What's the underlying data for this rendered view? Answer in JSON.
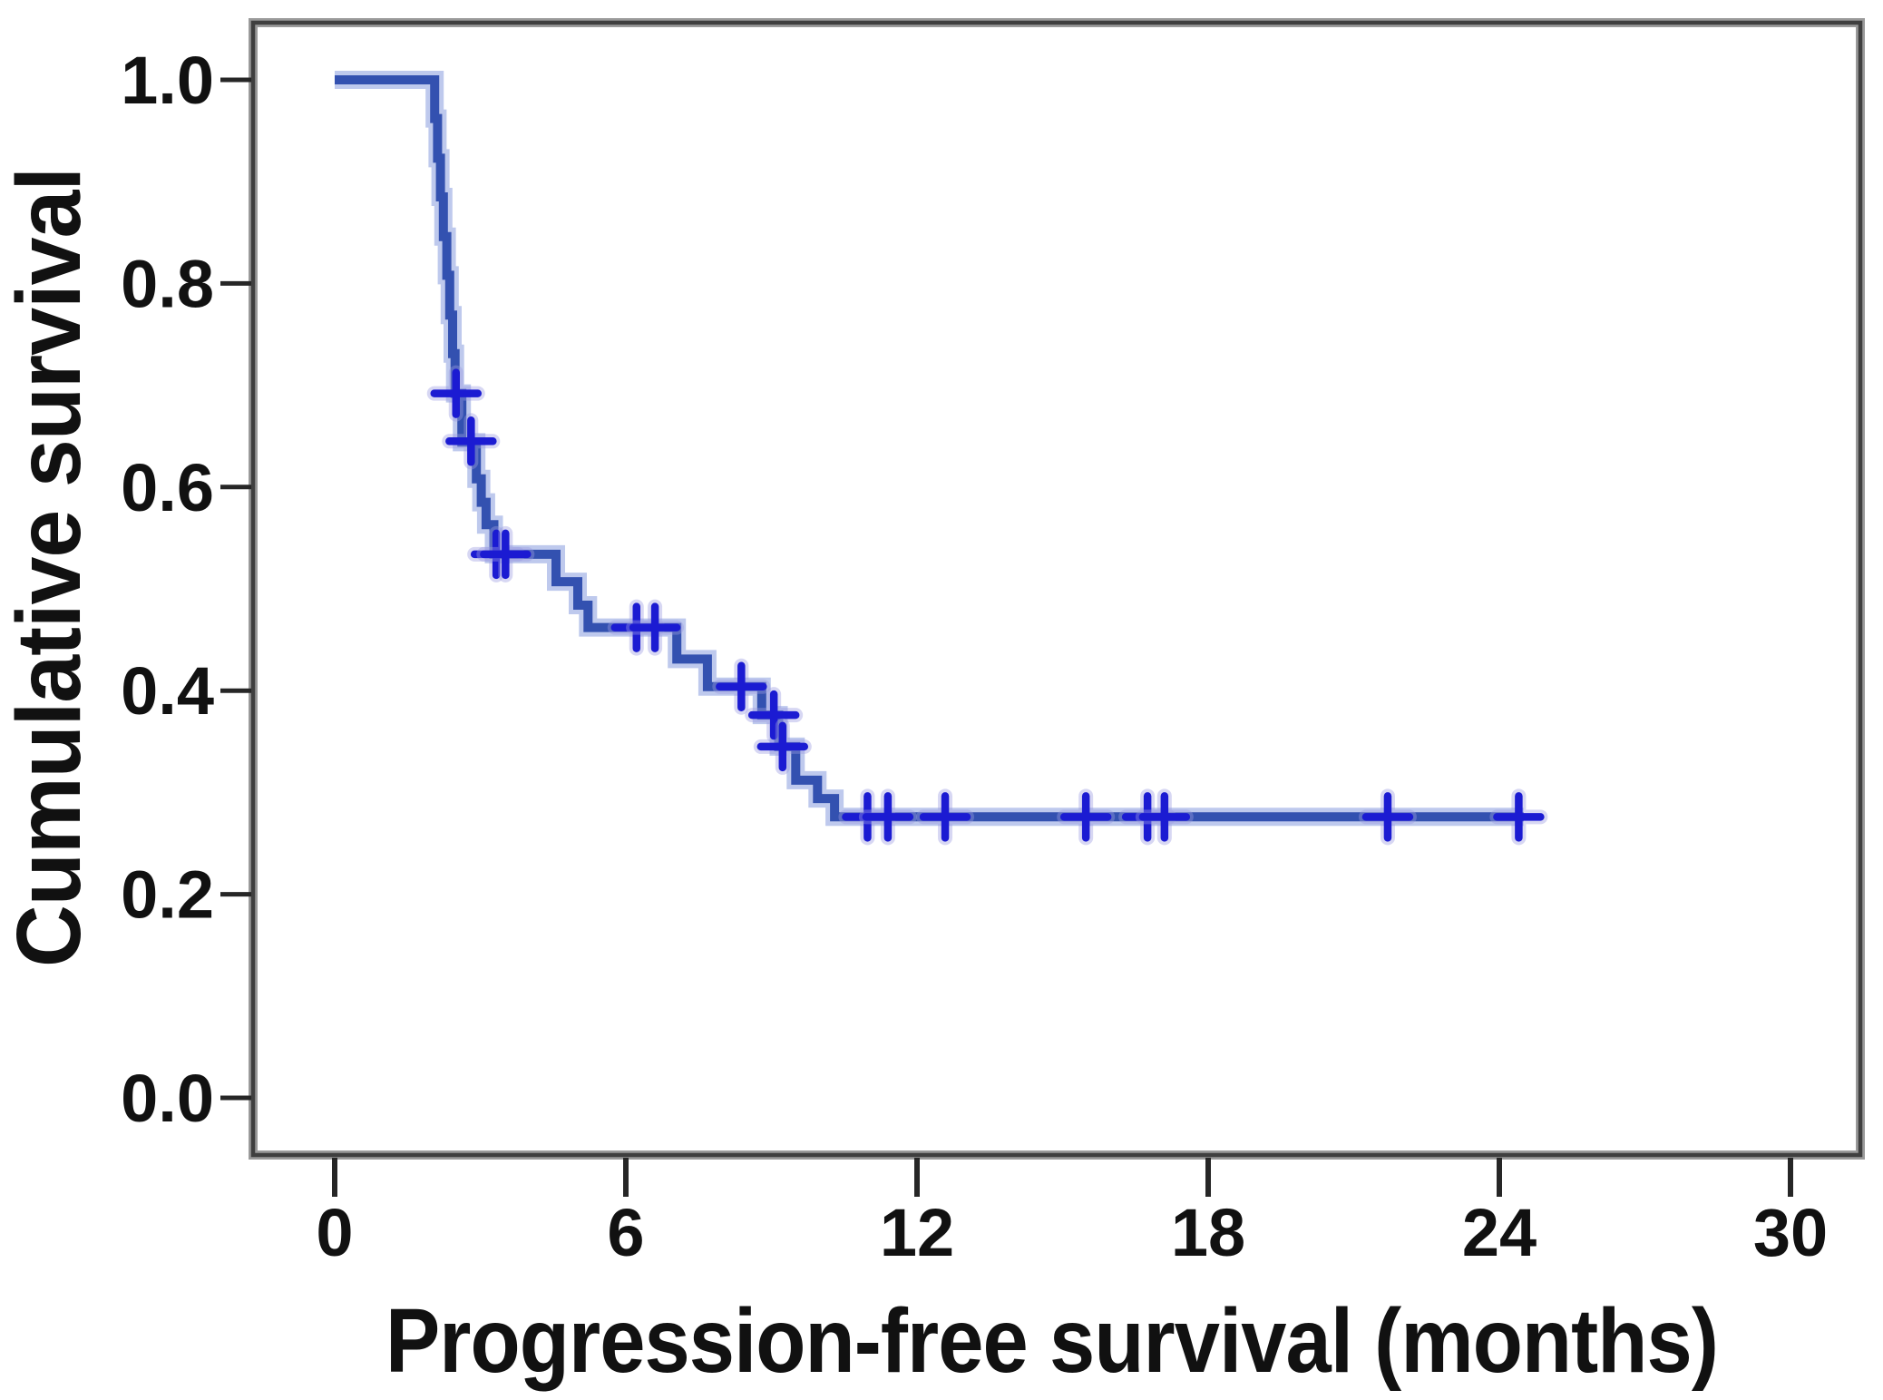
{
  "chart_data": {
    "type": "line",
    "subtype": "kaplan-meier-step-curve",
    "title": "",
    "xlabel": "Progression-free survival (months)",
    "ylabel": "Cumulative survival",
    "x_ticks": [
      {
        "value": 0,
        "label": "0"
      },
      {
        "value": 6,
        "label": "6"
      },
      {
        "value": 12,
        "label": "12"
      },
      {
        "value": 18,
        "label": "18"
      },
      {
        "value": 24,
        "label": "24"
      },
      {
        "value": 30,
        "label": "30"
      }
    ],
    "y_ticks": [
      {
        "value": 1.0,
        "label": "1.0"
      },
      {
        "value": 0.8,
        "label": "0.8"
      },
      {
        "value": 0.6,
        "label": "0.6"
      },
      {
        "value": 0.4,
        "label": "0.4"
      },
      {
        "value": 0.2,
        "label": "0.2"
      },
      {
        "value": 0.0,
        "label": "0.0"
      }
    ],
    "xlim": [
      -1.7,
      31.4
    ],
    "ylim": [
      -0.056,
      1.056
    ],
    "grid": false,
    "legend": "none",
    "series": [
      {
        "name": "progression-free-survival",
        "steps": [
          [
            0.0,
            1.0
          ],
          [
            2.06,
            0.962
          ],
          [
            2.12,
            0.923
          ],
          [
            2.18,
            0.885
          ],
          [
            2.24,
            0.846
          ],
          [
            2.31,
            0.808
          ],
          [
            2.37,
            0.769
          ],
          [
            2.43,
            0.731
          ],
          [
            2.48,
            0.692
          ],
          [
            2.62,
            0.644
          ],
          [
            2.92,
            0.608
          ],
          [
            3.02,
            0.585
          ],
          [
            3.12,
            0.563
          ],
          [
            3.28,
            0.534
          ],
          [
            4.56,
            0.507
          ],
          [
            5.01,
            0.484
          ],
          [
            5.22,
            0.462
          ],
          [
            7.05,
            0.431
          ],
          [
            7.68,
            0.404
          ],
          [
            8.8,
            0.376
          ],
          [
            9.15,
            0.345
          ],
          [
            9.5,
            0.312
          ],
          [
            9.95,
            0.294
          ],
          [
            10.3,
            0.276
          ]
        ],
        "end_time": 24.5,
        "censor_marks": [
          [
            2.5,
            0.692
          ],
          [
            2.81,
            0.645
          ],
          [
            3.33,
            0.534
          ],
          [
            3.52,
            0.534
          ],
          [
            6.22,
            0.462
          ],
          [
            6.6,
            0.462
          ],
          [
            8.38,
            0.404
          ],
          [
            9.05,
            0.376
          ],
          [
            9.23,
            0.345
          ],
          [
            10.98,
            0.276
          ],
          [
            11.4,
            0.276
          ],
          [
            12.58,
            0.276
          ],
          [
            15.48,
            0.276
          ],
          [
            16.75,
            0.276
          ],
          [
            17.1,
            0.276
          ],
          [
            21.7,
            0.276
          ],
          [
            24.4,
            0.276
          ]
        ]
      }
    ],
    "colors": {
      "curve_core": "#3351b0",
      "curve_halo": "#b3c0ea",
      "censor_core": "#1b1bd2",
      "censor_halo": "#9a9ae0",
      "frame": "#3f3f3f",
      "frame_halo": "#9a9a9a",
      "tick": "#262626",
      "text": "#111111",
      "background": "#ffffff"
    }
  }
}
